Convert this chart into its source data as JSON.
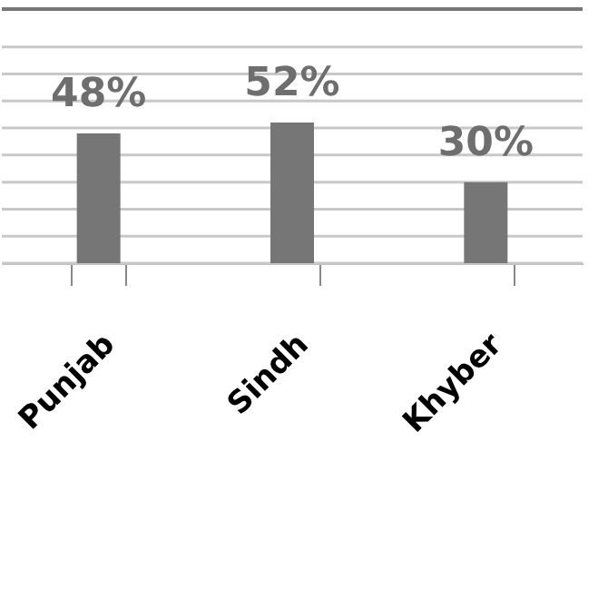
{
  "chart_data": {
    "type": "bar",
    "categories": [
      "Punjab",
      "Sindh",
      "Khyber"
    ],
    "values": [
      48,
      52,
      30
    ],
    "color": "#767676",
    "ylim": [
      0,
      94
    ],
    "yticks": [
      {
        "value": 0,
        "label": null
      },
      {
        "value": 10,
        "label": null
      },
      {
        "value": 20,
        "label": null
      },
      {
        "value": 30,
        "label": null
      },
      {
        "value": 40,
        "label": null
      },
      {
        "value": 50,
        "label": null
      },
      {
        "value": 60,
        "label": null
      },
      {
        "value": 70,
        "label": null
      },
      {
        "value": 80,
        "label": null
      }
    ],
    "grid": "y",
    "tick_labels": "x",
    "data_labels": true,
    "value_labels": [
      "48%",
      "52%",
      "30%"
    ]
  }
}
